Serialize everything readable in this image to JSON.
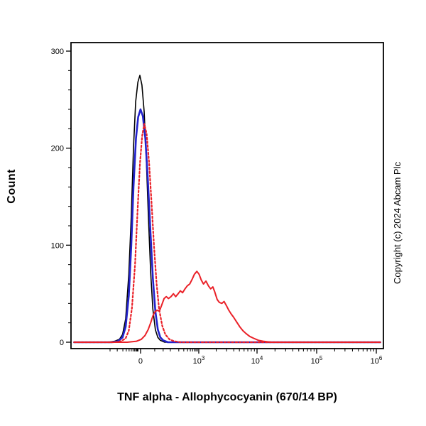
{
  "labels": {
    "ylabel": "Count",
    "xlabel": "TNF alpha - Allophycocyanin (670/14 BP)",
    "copyright": "Copyright (c) 2024 Abcam Plc"
  },
  "chart_data": {
    "type": "line",
    "subtype": "flow-cytometry-overlay-histogram",
    "title": "",
    "xlabel": "TNF alpha - Allophycocyanin (670/14 BP)",
    "ylabel": "Count",
    "x_scale": "biexponential: linear around 0, log decades to 10^6; u = fraction across plot width",
    "ylim": [
      0,
      300
    ],
    "grid": false,
    "legend": "none",
    "y_axis": {
      "major_ticks": [
        0,
        100,
        200,
        300
      ],
      "minor_ticks": [
        20,
        40,
        60,
        80,
        120,
        140,
        160,
        180,
        220,
        240,
        260,
        280
      ]
    },
    "x_axis": {
      "major_ticks": [
        {
          "label": "0",
          "sup": "",
          "u": 0.2227
        },
        {
          "label": "10",
          "sup": "3",
          "u": 0.409
        },
        {
          "label": "10",
          "sup": "4",
          "u": 0.5955
        },
        {
          "label": "10",
          "sup": "5",
          "u": 0.7864
        },
        {
          "label": "10",
          "sup": "6",
          "u": 0.9773
        }
      ],
      "minor_ticks_u": [
        0.125,
        0.148,
        0.166,
        0.177,
        0.186,
        0.193,
        0.1985,
        0.203,
        0.207,
        0.21,
        0.2125,
        0.2145,
        0.268,
        0.295,
        0.318,
        0.345,
        0.361,
        0.373,
        0.382,
        0.389,
        0.395,
        0.4,
        0.4045,
        0.465,
        0.498,
        0.521,
        0.539,
        0.554,
        0.566,
        0.577,
        0.587,
        0.653,
        0.687,
        0.71,
        0.729,
        0.744,
        0.757,
        0.768,
        0.778,
        0.844,
        0.877,
        0.901,
        0.92,
        0.935,
        0.948,
        0.959,
        0.969
      ]
    },
    "series": [
      {
        "name": "black_solid",
        "color": "#000000",
        "style": "solid",
        "width": 1.6,
        "peak_count": 275,
        "peak_u": 0.2205,
        "points": [
          [
            0.01,
            0
          ],
          [
            0.12,
            0
          ],
          [
            0.14,
            1
          ],
          [
            0.155,
            3
          ],
          [
            0.165,
            8
          ],
          [
            0.175,
            24
          ],
          [
            0.185,
            70
          ],
          [
            0.193,
            130
          ],
          [
            0.2,
            200
          ],
          [
            0.207,
            248
          ],
          [
            0.214,
            268
          ],
          [
            0.2205,
            275
          ],
          [
            0.227,
            265
          ],
          [
            0.234,
            238
          ],
          [
            0.241,
            190
          ],
          [
            0.248,
            128
          ],
          [
            0.255,
            72
          ],
          [
            0.262,
            34
          ],
          [
            0.27,
            13
          ],
          [
            0.278,
            5
          ],
          [
            0.286,
            2
          ],
          [
            0.3,
            0
          ],
          [
            0.99,
            0
          ]
        ]
      },
      {
        "name": "blue_solid",
        "color": "#2222cc",
        "style": "solid",
        "width": 2.6,
        "peak_count": 240,
        "peak_u": 0.2225,
        "points": [
          [
            0.01,
            0
          ],
          [
            0.13,
            0
          ],
          [
            0.15,
            1
          ],
          [
            0.165,
            5
          ],
          [
            0.175,
            16
          ],
          [
            0.185,
            48
          ],
          [
            0.193,
            100
          ],
          [
            0.2,
            160
          ],
          [
            0.208,
            210
          ],
          [
            0.215,
            232
          ],
          [
            0.2225,
            240
          ],
          [
            0.23,
            233
          ],
          [
            0.238,
            210
          ],
          [
            0.246,
            168
          ],
          [
            0.254,
            115
          ],
          [
            0.262,
            66
          ],
          [
            0.27,
            32
          ],
          [
            0.278,
            13
          ],
          [
            0.286,
            5
          ],
          [
            0.295,
            2
          ],
          [
            0.31,
            0
          ],
          [
            0.99,
            0
          ]
        ]
      },
      {
        "name": "red_dotted",
        "color": "#ea2128",
        "style": "dotted",
        "width": 2.2,
        "peak_count": 225,
        "peak_u": 0.2345,
        "points": [
          [
            0.01,
            0
          ],
          [
            0.14,
            0
          ],
          [
            0.16,
            1
          ],
          [
            0.175,
            4
          ],
          [
            0.185,
            12
          ],
          [
            0.195,
            35
          ],
          [
            0.205,
            80
          ],
          [
            0.213,
            135
          ],
          [
            0.221,
            185
          ],
          [
            0.228,
            213
          ],
          [
            0.2345,
            225
          ],
          [
            0.242,
            215
          ],
          [
            0.25,
            185
          ],
          [
            0.258,
            143
          ],
          [
            0.266,
            98
          ],
          [
            0.274,
            60
          ],
          [
            0.282,
            34
          ],
          [
            0.292,
            17
          ],
          [
            0.302,
            8
          ],
          [
            0.315,
            3
          ],
          [
            0.33,
            1
          ],
          [
            0.35,
            0
          ],
          [
            0.99,
            0
          ]
        ]
      },
      {
        "name": "red_solid",
        "color": "#ea2128",
        "style": "solid",
        "width": 2.0,
        "peak_count": 73,
        "peak_u": 0.403,
        "peak_near_tick": "10^3",
        "points": [
          [
            0.01,
            0
          ],
          [
            0.18,
            0
          ],
          [
            0.21,
            1
          ],
          [
            0.225,
            3
          ],
          [
            0.237,
            7
          ],
          [
            0.247,
            13
          ],
          [
            0.255,
            20
          ],
          [
            0.262,
            27
          ],
          [
            0.268,
            31
          ],
          [
            0.275,
            33
          ],
          [
            0.283,
            32
          ],
          [
            0.29,
            38
          ],
          [
            0.298,
            45
          ],
          [
            0.305,
            47
          ],
          [
            0.312,
            45
          ],
          [
            0.32,
            47
          ],
          [
            0.328,
            50
          ],
          [
            0.335,
            47
          ],
          [
            0.343,
            50
          ],
          [
            0.35,
            53
          ],
          [
            0.357,
            51
          ],
          [
            0.365,
            55
          ],
          [
            0.372,
            58
          ],
          [
            0.38,
            60
          ],
          [
            0.388,
            65
          ],
          [
            0.395,
            70
          ],
          [
            0.403,
            73
          ],
          [
            0.41,
            70
          ],
          [
            0.417,
            64
          ],
          [
            0.424,
            60
          ],
          [
            0.432,
            63
          ],
          [
            0.44,
            58
          ],
          [
            0.447,
            55
          ],
          [
            0.454,
            57
          ],
          [
            0.46,
            52
          ],
          [
            0.468,
            44
          ],
          [
            0.475,
            41
          ],
          [
            0.483,
            40
          ],
          [
            0.49,
            42
          ],
          [
            0.497,
            38
          ],
          [
            0.505,
            33
          ],
          [
            0.513,
            29
          ],
          [
            0.52,
            26
          ],
          [
            0.53,
            21
          ],
          [
            0.54,
            16
          ],
          [
            0.55,
            12
          ],
          [
            0.56,
            9
          ],
          [
            0.572,
            6
          ],
          [
            0.585,
            4
          ],
          [
            0.6,
            2
          ],
          [
            0.615,
            1
          ],
          [
            0.64,
            0
          ],
          [
            0.99,
            0
          ]
        ]
      }
    ]
  }
}
